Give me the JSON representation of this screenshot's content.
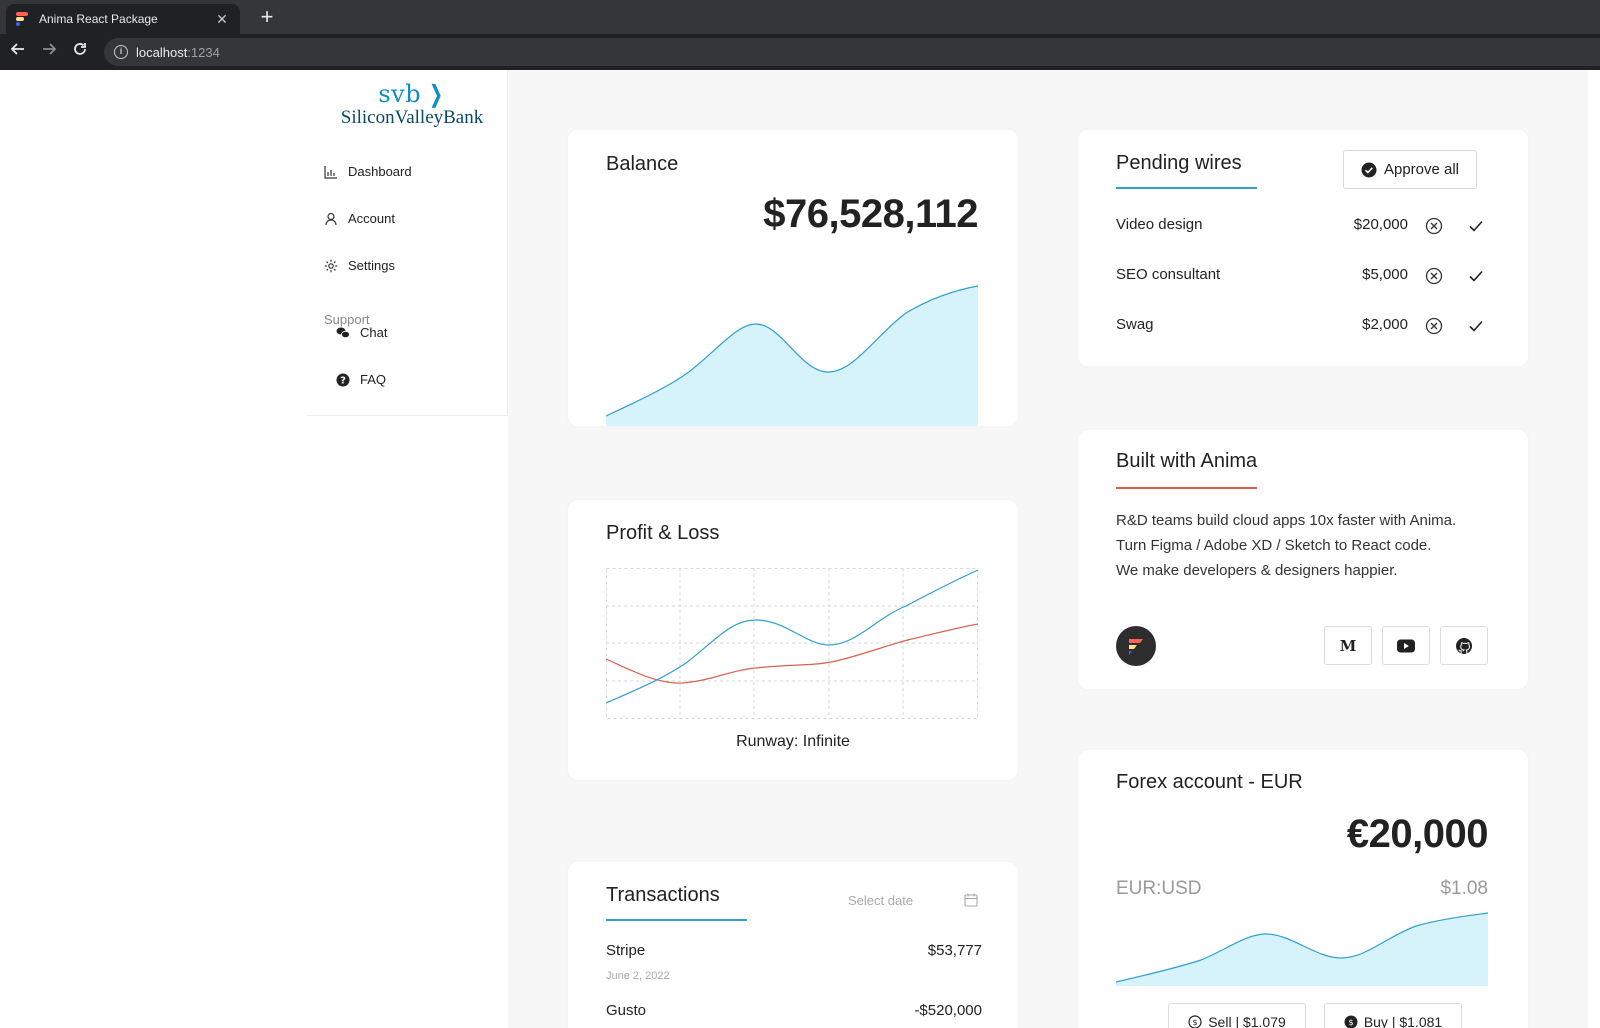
{
  "browser": {
    "tab_title": "Anima React Package",
    "url_host": "localhost",
    "url_port": ":1234"
  },
  "sidebar": {
    "logo_short": "svb",
    "logo_name": "SiliconValleyBank",
    "items": [
      {
        "label": "Dashboard",
        "icon": "bar-chart-icon"
      },
      {
        "label": "Account",
        "icon": "user-icon"
      },
      {
        "label": "Settings",
        "icon": "gear-icon"
      }
    ],
    "support_label": "Support",
    "support_items": [
      {
        "label": "Chat",
        "icon": "chat-icon"
      },
      {
        "label": "FAQ",
        "icon": "question-icon"
      }
    ]
  },
  "balance": {
    "title": "Balance",
    "amount": "$76,528,112"
  },
  "pending_wires": {
    "title": "Pending wires",
    "approve_all_label": "Approve all",
    "items": [
      {
        "name": "Video design",
        "amount": "$20,000"
      },
      {
        "name": "SEO consultant",
        "amount": "$5,000"
      },
      {
        "name": "Swag",
        "amount": "$2,000"
      }
    ]
  },
  "built_with": {
    "title": "Built with Anima",
    "line1": "R&D teams build cloud apps 10x faster with Anima.",
    "line2": "Turn Figma / Adobe XD / Sketch to React code.",
    "line3": "We make developers & designers happier.",
    "medium_label": "M"
  },
  "profit_loss": {
    "title": "Profit & Loss",
    "runway": "Runway: Infinite"
  },
  "transactions": {
    "title": "Transactions",
    "date_placeholder": "Select date",
    "items": [
      {
        "name": "Stripe",
        "date": "June 2, 2022",
        "amount": "$53,777"
      },
      {
        "name": "Gusto",
        "date": "",
        "amount": "-$520,000"
      }
    ]
  },
  "forex": {
    "title": "Forex account - EUR",
    "amount": "€20,000",
    "pair": "EUR:USD",
    "rate": "$1.08",
    "sell_label": "Sell | $1.079",
    "buy_label": "Buy | $1.081"
  },
  "colors": {
    "accent_blue": "#2f9fd0",
    "accent_red": "#d9604f",
    "area_fill": "#d6f2fb",
    "brand_blue": "#0f8ec2"
  }
}
